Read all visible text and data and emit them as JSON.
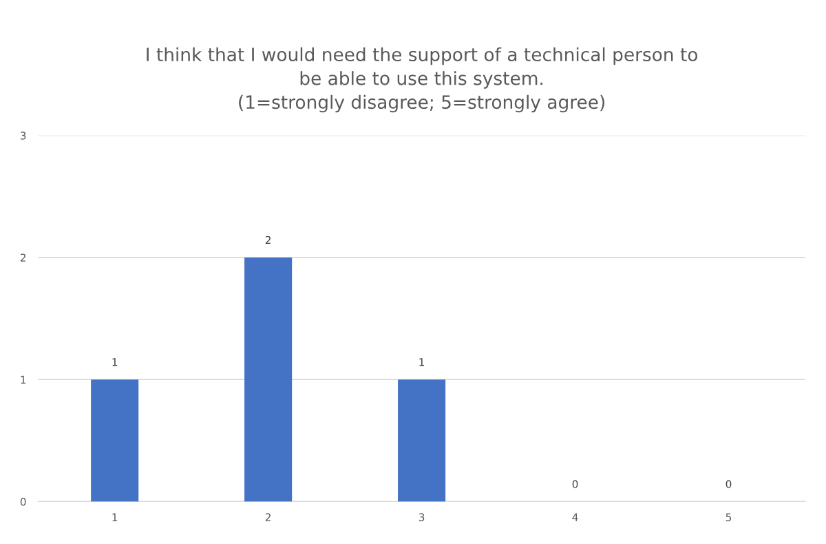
{
  "chart_data": {
    "type": "bar",
    "title": "I think that I would need the support of a technical person to\nbe able to use this system.\n(1=strongly disagree; 5=strongly agree)",
    "categories": [
      "1",
      "2",
      "3",
      "4",
      "5"
    ],
    "values": [
      1,
      2,
      1,
      0,
      0
    ],
    "color": "#4472c4",
    "ylim": [
      0,
      3
    ],
    "yticks": [
      0,
      1,
      2,
      3
    ],
    "grid": "y",
    "data_labels": true
  }
}
